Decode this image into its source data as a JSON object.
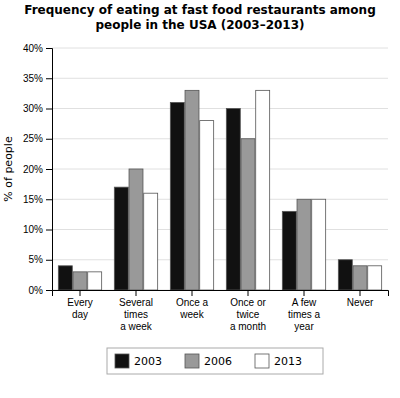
{
  "chart_data": {
    "type": "bar",
    "title": "Frequency of eating at fast food restaurants among\npeople in the USA (2003–2013)",
    "ylabel": "% of people",
    "categories": [
      "Every\nday",
      "Several\ntimes\na week",
      "Once a\nweek",
      "Once or\ntwice\na month",
      "A few\ntimes a\nyear",
      "Never"
    ],
    "series": [
      {
        "name": "2003",
        "color": "#111111",
        "values": [
          4,
          17,
          31,
          30,
          13,
          5
        ]
      },
      {
        "name": "2006",
        "color": "#999999",
        "values": [
          3,
          20,
          33,
          25,
          15,
          4
        ]
      },
      {
        "name": "2013",
        "color": "#ffffff",
        "values": [
          3,
          16,
          28,
          33,
          15,
          4
        ]
      }
    ],
    "ylim": [
      0,
      40
    ],
    "yticks": [
      {
        "value": 0,
        "label": "0%"
      },
      {
        "value": 5,
        "label": "5%"
      },
      {
        "value": 10,
        "label": "10%"
      },
      {
        "value": 15,
        "label": "15%"
      },
      {
        "value": 20,
        "label": "20%"
      },
      {
        "value": 25,
        "label": "25%"
      },
      {
        "value": 30,
        "label": "30%"
      },
      {
        "value": 35,
        "label": "35%"
      },
      {
        "value": 40,
        "label": "40%"
      }
    ],
    "grid": true,
    "legend": "bottom"
  }
}
